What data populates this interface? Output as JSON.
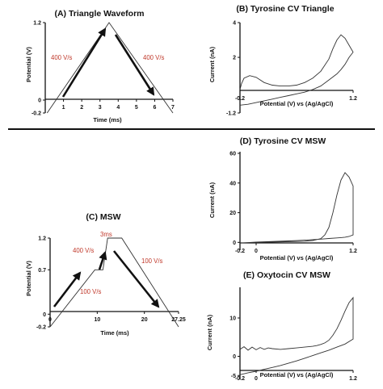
{
  "colors": {
    "annotation": "#c0392b",
    "ink": "#111111"
  },
  "chart_data": [
    {
      "id": "A",
      "type": "line",
      "title": "(A) Triangle Waveform",
      "xlabel": "Time (ms)",
      "ylabel": "Potential (V)",
      "xlim": [
        0,
        7
      ],
      "ylim": [
        -0.2,
        1.2
      ],
      "x_ticks": [
        "1",
        "2",
        "3",
        "4",
        "5",
        "6",
        "7"
      ],
      "y_ticks": [
        "1.2",
        "0",
        "-0.2"
      ],
      "series": [
        {
          "x": [
            0.1,
            3.5,
            7.0
          ],
          "y": [
            -0.2,
            1.2,
            -0.2
          ]
        }
      ],
      "annotations": [
        "400 V/s",
        "400 V/s"
      ]
    },
    {
      "id": "B",
      "type": "line",
      "title": "(B) Tyrosine CV Triangle",
      "xlabel": "Potential (V) vs (Ag/AgCl)",
      "ylabel": "Current (nA)",
      "xlim": [
        -0.2,
        1.2
      ],
      "ylim": [
        -1.2,
        4
      ],
      "x_ticks": [
        "-0.2",
        "1.2"
      ],
      "y_ticks": [
        "4",
        "2",
        "-1.2"
      ],
      "series": [
        {
          "x": [
            -0.2,
            -0.18,
            -0.15,
            -0.08,
            0.0,
            0.1,
            0.2,
            0.3,
            0.4,
            0.5,
            0.6,
            0.7,
            0.8,
            0.9,
            0.95,
            1.0,
            1.05,
            1.1,
            1.15,
            1.2,
            1.15,
            1.1,
            1.05,
            1.0,
            0.9,
            0.8,
            0.7,
            0.6,
            0.5,
            0.4,
            0.3,
            0.2,
            0.1,
            0.0,
            -0.1,
            -0.2
          ],
          "y": [
            0.15,
            0.5,
            0.8,
            0.95,
            0.85,
            0.55,
            0.4,
            0.35,
            0.35,
            0.4,
            0.55,
            0.8,
            1.2,
            1.9,
            2.5,
            3.0,
            3.3,
            3.1,
            2.7,
            2.3,
            2.0,
            1.6,
            1.3,
            1.05,
            0.7,
            0.35,
            0.15,
            0.0,
            -0.1,
            -0.2,
            -0.3,
            -0.4,
            -0.5,
            -0.6,
            -0.7,
            -0.75
          ]
        }
      ]
    },
    {
      "id": "C",
      "type": "line",
      "title": "(C) MSW",
      "xlabel": "Time (ms)",
      "ylabel": "Potential (V)",
      "xlim": [
        0,
        27.25
      ],
      "ylim": [
        -0.2,
        1.2
      ],
      "x_ticks": [
        "0",
        "10",
        "20",
        "27.25"
      ],
      "y_ticks": [
        "1.2",
        "0.7",
        "0",
        "-0.2"
      ],
      "series": [
        {
          "x": [
            0,
            9.5,
            11.2,
            12.2,
            15.2,
            27.25
          ],
          "y": [
            -0.2,
            0.7,
            0.7,
            1.2,
            1.2,
            -0.2
          ]
        }
      ],
      "annotations": [
        "3ms",
        "400 V/s",
        "100 V/s",
        "100 V/s"
      ]
    },
    {
      "id": "D",
      "type": "line",
      "title": "(D) Tyrosine CV MSW",
      "xlabel": "Potential (V) vs (Ag/AgCl)",
      "ylabel": "Current (nA)",
      "xlim": [
        -0.2,
        1.2
      ],
      "ylim": [
        -2,
        60
      ],
      "x_ticks": [
        "-0.2",
        "0",
        "1.2"
      ],
      "y_ticks": [
        "60",
        "40",
        "20",
        "0"
      ],
      "series": [
        {
          "x": [
            -0.2,
            0.0,
            0.2,
            0.4,
            0.6,
            0.7,
            0.8,
            0.85,
            0.9,
            0.95,
            1.0,
            1.05,
            1.1,
            1.15,
            1.2,
            1.2,
            1.15,
            1.1,
            1.05,
            1.0,
            0.9,
            0.8,
            0.7,
            0.6,
            0.5,
            0.4,
            0.2,
            0.0,
            -0.2
          ],
          "y": [
            -0.5,
            0.0,
            0.2,
            0.5,
            0.8,
            1.2,
            2.5,
            5,
            10,
            20,
            32,
            42,
            47,
            44,
            38,
            5,
            4,
            3.5,
            3.2,
            3.0,
            2.6,
            2.2,
            1.8,
            1.5,
            1.2,
            1.0,
            0.6,
            0.2,
            -0.5
          ]
        }
      ]
    },
    {
      "id": "E",
      "type": "line",
      "title": "(E) Oxytocin CV MSW",
      "xlabel": "Potential (V) vs (Ag/AgCl)",
      "ylabel": "Current (nA)",
      "xlim": [
        -0.2,
        1.2
      ],
      "ylim": [
        -6,
        18
      ],
      "x_ticks": [
        "-0.2",
        "0",
        "1.2"
      ],
      "y_ticks": [
        "10",
        "0",
        "-5"
      ],
      "series": [
        {
          "x": [
            -0.2,
            -0.15,
            -0.1,
            -0.05,
            0.0,
            0.05,
            0.1,
            0.15,
            0.2,
            0.3,
            0.4,
            0.5,
            0.6,
            0.7,
            0.75,
            0.8,
            0.85,
            0.9,
            0.95,
            1.0,
            1.05,
            1.1,
            1.15,
            1.2,
            1.2,
            1.1,
            1.0,
            0.9,
            0.8,
            0.7,
            0.6,
            0.5,
            0.4,
            0.3,
            0.2,
            0.1,
            0.0,
            -0.1,
            -0.2
          ],
          "y": [
            1.8,
            2.5,
            1.6,
            2.4,
            1.7,
            2.3,
            1.8,
            2.2,
            2.0,
            1.8,
            2.0,
            2.2,
            2.4,
            2.6,
            2.8,
            3.1,
            3.5,
            4.2,
            5.5,
            7.2,
            9.4,
            11.8,
            14.0,
            15.3,
            4.5,
            3.2,
            2.4,
            1.6,
            0.9,
            0.2,
            -0.5,
            -1.2,
            -1.8,
            -2.4,
            -2.9,
            -3.4,
            -3.9,
            -4.3,
            -4.8
          ]
        }
      ]
    }
  ]
}
